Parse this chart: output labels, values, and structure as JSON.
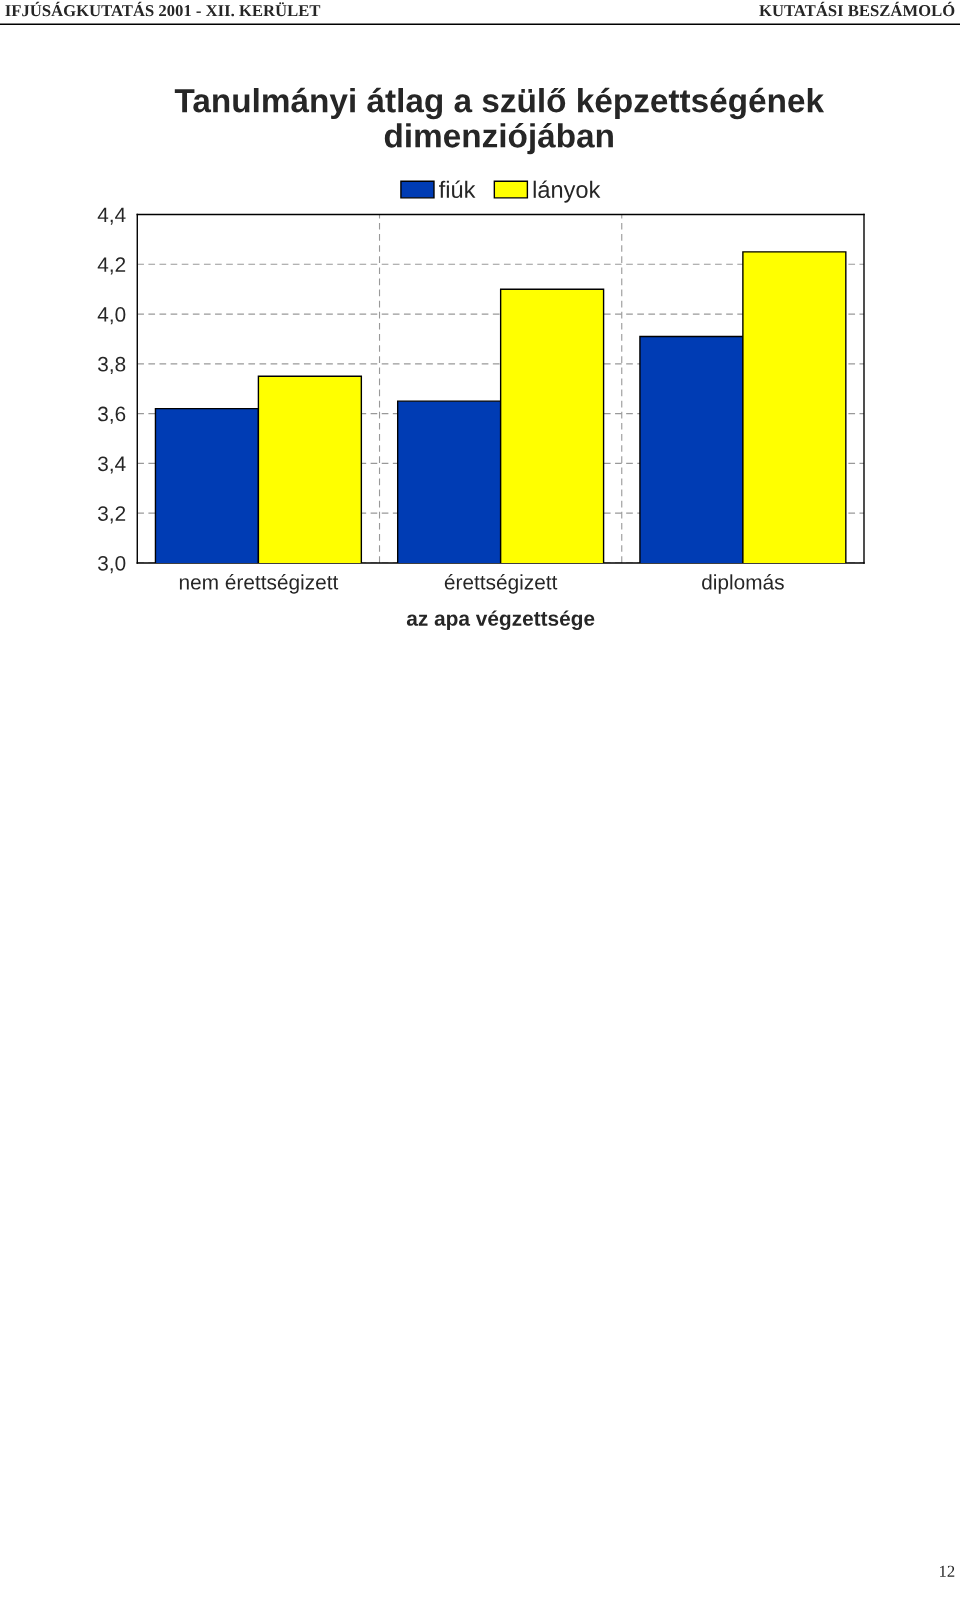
{
  "chart_data": {
    "type": "bar",
    "title": "Tanulmányi átlag a szülő képzettségének\ndimenziójában",
    "xlabel": "az apa végzettsége",
    "categories": [
      "nem érettségizett",
      "érettségizett",
      "diplomás"
    ],
    "series": [
      {
        "name": "fiúk",
        "color": "#003cb4",
        "values": [
          3.62,
          3.65,
          3.91
        ]
      },
      {
        "name": "lányok",
        "color": "#ffff00",
        "values": [
          3.75,
          4.1,
          4.25
        ]
      }
    ],
    "ylim": [
      3.0,
      4.4
    ],
    "yticks": [
      {
        "value": 3.0,
        "label": "3,0"
      },
      {
        "value": 3.2,
        "label": "3,2"
      },
      {
        "value": 3.4,
        "label": "3,4"
      },
      {
        "value": 3.6,
        "label": "3,6"
      },
      {
        "value": 3.8,
        "label": "3,8"
      },
      {
        "value": 4.0,
        "label": "4,0"
      },
      {
        "value": 4.2,
        "label": "4,2"
      },
      {
        "value": 4.4,
        "label": "4,4"
      }
    ],
    "grid": true,
    "legend": "top",
    "annotations": [
      "IFJÚSÁGKUTATÁS 2001 - XII. KERÜLET",
      "KUTATÁSI BESZÁMOLÓ",
      "12"
    ]
  }
}
